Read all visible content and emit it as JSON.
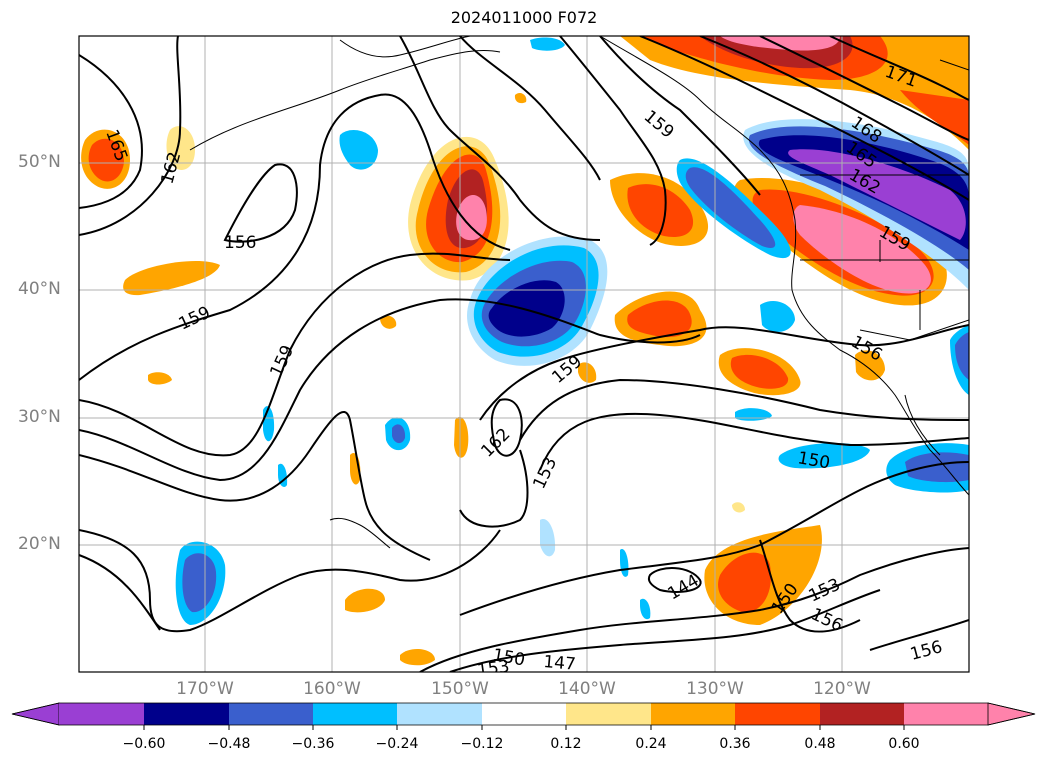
{
  "title": "2024011000 F072",
  "lat_labels": [
    "50°N",
    "40°N",
    "30°N",
    "20°N"
  ],
  "lon_labels": [
    "170°W",
    "160°W",
    "150°W",
    "140°W",
    "130°W",
    "120°W"
  ],
  "colorbar": {
    "ticks": [
      "−0.60",
      "−0.48",
      "−0.36",
      "−0.24",
      "−0.12",
      "0.12",
      "0.24",
      "0.36",
      "0.48",
      "0.60"
    ],
    "colors": [
      "#9a3fd3",
      "#00008b",
      "#3a5fcd",
      "#00bfff",
      "#b0e2ff",
      "#ffffff",
      "#ffe68a",
      "#ffa500",
      "#ff4500",
      "#b22222",
      "#ff82ab",
      "#ff82ab"
    ]
  },
  "contour_labels": [
    "165",
    "162",
    "156",
    "159",
    "159",
    "159",
    "162",
    "153",
    "159",
    "168",
    "165",
    "162",
    "159",
    "171",
    "156",
    "150",
    "144",
    "150",
    "153",
    "156",
    "156",
    "150",
    "147",
    "153"
  ]
}
